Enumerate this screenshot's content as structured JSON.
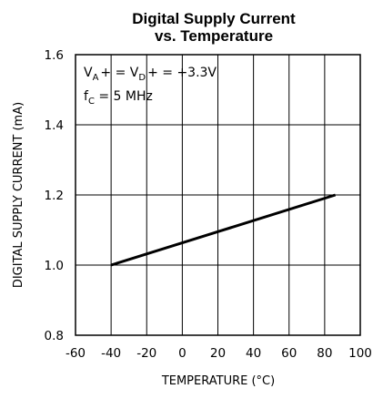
{
  "chart_data": {
    "type": "line",
    "title_line1": "Digital Supply Current",
    "title_line2": "vs. Temperature",
    "xlabel": "TEMPERATURE (°C)",
    "ylabel": "DIGITAL SUPPLY CURRENT (mA)",
    "xlim": [
      -60,
      100
    ],
    "ylim": [
      0.8,
      1.6
    ],
    "x_ticks": [
      "-60",
      "-40",
      "-20",
      "0",
      "20",
      "40",
      "60",
      "80",
      "100"
    ],
    "y_ticks": [
      "0.8",
      "1.0",
      "1.2",
      "1.4",
      "1.6"
    ],
    "grid": true,
    "series": [
      {
        "x": [
          -40,
          86
        ],
        "y": [
          1.0,
          1.2
        ]
      }
    ],
    "annotations": {
      "line1": {
        "v": "V",
        "sub_a": "A",
        "plus_eq": "+ = ",
        "sub_d": "D",
        "rest": "+ = +3.3V"
      },
      "line2": {
        "f": "f",
        "sub_c": "C",
        "rest": " = 5 MHz"
      }
    },
    "line_color": "#000000"
  }
}
